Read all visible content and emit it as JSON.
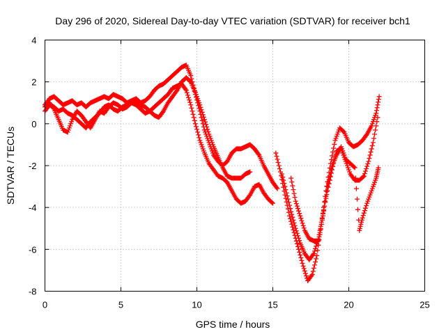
{
  "chart_data": {
    "type": "scatter",
    "title": "Day 296 of 2020, Sidereal Day-to-day VTEC variation (SDTVAR) for receiver bch1",
    "xlabel": "GPS time / hours",
    "ylabel": "SDTVAR / TECUs",
    "xlim": [
      0,
      25
    ],
    "ylim": [
      -8,
      4
    ],
    "xticks": [
      "0",
      "5",
      "10",
      "15",
      "20",
      "25"
    ],
    "yticks": [
      "-8",
      "-6",
      "-4",
      "-2",
      "0",
      "2",
      "4"
    ],
    "grid": true,
    "marker": "plus",
    "color": "#ff0000",
    "series": [
      {
        "x": [
          0,
          0.3,
          0.6,
          0.9,
          1.2,
          1.5,
          1.8,
          2.1,
          2.4,
          2.7,
          3.0,
          3.3,
          3.6,
          3.9,
          4.2,
          4.5,
          4.8,
          5.1,
          5.4,
          5.7,
          6.0,
          6.3,
          6.6,
          6.9,
          7.2,
          7.5,
          7.8,
          8.1,
          8.4,
          8.7,
          9.0,
          9.3,
          9.6,
          9.9,
          10.2,
          10.5,
          10.8,
          11.1,
          11.4,
          11.7,
          12.0,
          12.3,
          12.6,
          12.9,
          13.2,
          13.5,
          13.8,
          14.1,
          14.4,
          14.7,
          15.0,
          15.3
        ],
        "y": [
          0.9,
          1.2,
          1.3,
          1.1,
          0.9,
          1.0,
          1.1,
          0.9,
          1.0,
          0.8,
          1.0,
          1.1,
          1.2,
          1.3,
          1.2,
          1.4,
          1.3,
          1.2,
          1.0,
          1.1,
          1.2,
          1.0,
          1.1,
          1.3,
          1.6,
          1.8,
          1.9,
          2.1,
          2.3,
          2.5,
          2.7,
          2.8,
          2.3,
          1.4,
          0.6,
          -0.3,
          -0.9,
          -1.5,
          -1.8,
          -2.0,
          -1.8,
          -1.4,
          -1.2,
          -1.2,
          -1.1,
          -1.0,
          -1.2,
          -1.5,
          -2.0,
          -2.4,
          -2.8,
          -3.1
        ]
      },
      {
        "x": [
          0,
          0.3,
          0.6,
          0.9,
          1.2,
          1.5,
          1.8,
          2.1,
          2.4,
          2.7,
          3.0,
          3.3,
          3.6,
          3.9,
          4.2,
          4.5,
          4.8,
          5.1,
          5.4,
          5.7,
          6.0,
          6.3,
          6.6,
          6.9,
          7.2,
          7.5,
          7.8,
          8.1,
          8.4,
          8.7,
          9.0,
          9.3,
          9.6,
          9.9,
          10.2,
          10.5,
          10.8,
          11.1,
          11.4,
          11.7,
          12.0,
          12.3,
          12.6,
          12.9,
          13.2,
          13.5,
          13.8,
          14.1,
          14.4,
          14.7,
          15.0
        ],
        "y": [
          0.6,
          0.9,
          0.8,
          0.6,
          0.7,
          0.5,
          0.4,
          0.2,
          0.0,
          -0.2,
          0.1,
          0.3,
          0.5,
          0.8,
          0.9,
          0.7,
          0.6,
          0.8,
          0.9,
          1.0,
          0.9,
          0.7,
          0.5,
          0.6,
          0.8,
          1.0,
          1.2,
          1.4,
          1.7,
          1.8,
          1.9,
          1.6,
          0.9,
          0.0,
          -0.8,
          -1.4,
          -1.9,
          -2.2,
          -2.5,
          -2.6,
          -2.8,
          -3.2,
          -3.6,
          -3.8,
          -3.7,
          -3.4,
          -3.0,
          -2.9,
          -3.3,
          -3.6,
          -3.8
        ]
      },
      {
        "x": [
          0,
          0.3,
          0.6,
          0.9,
          1.2,
          1.5,
          1.8,
          2.1,
          2.4,
          2.7,
          3.0,
          3.3,
          3.6,
          3.9,
          4.2,
          4.5,
          4.8,
          5.1,
          5.4,
          5.7,
          6.0,
          6.3,
          6.6,
          6.9,
          7.2,
          7.5,
          7.8,
          8.1,
          8.4,
          8.7,
          9.0,
          9.3,
          9.6,
          9.9,
          10.2,
          10.5,
          10.8,
          11.1,
          11.4,
          11.7,
          12.0,
          12.3,
          12.6,
          12.9,
          13.2,
          13.5
        ],
        "y": [
          0.8,
          1.0,
          0.7,
          0.2,
          -0.3,
          -0.4,
          0.2,
          0.6,
          0.4,
          0.1,
          -0.2,
          0.2,
          0.6,
          0.5,
          0.8,
          1.0,
          0.9,
          0.7,
          0.8,
          1.0,
          1.1,
          0.9,
          0.8,
          0.6,
          0.4,
          0.3,
          0.6,
          1.0,
          1.3,
          1.6,
          2.0,
          2.2,
          2.0,
          1.5,
          0.9,
          0.2,
          -0.5,
          -1.1,
          -1.6,
          -2.1,
          -2.5,
          -2.6,
          -2.6,
          -2.6,
          -2.4,
          -2.3
        ]
      },
      {
        "x": [
          15.2,
          15.5,
          15.8,
          16.1,
          16.4,
          16.7,
          17.0,
          17.3,
          17.6,
          17.9,
          18.2,
          18.5,
          18.8,
          19.1,
          19.4,
          19.7,
          20.0,
          20.3,
          20.6,
          20.9,
          21.2,
          21.5,
          21.8,
          22.0
        ],
        "y": [
          -1.4,
          -2.3,
          -3.4,
          -4.4,
          -5.2,
          -6.0,
          -6.8,
          -7.5,
          -7.2,
          -6.3,
          -4.8,
          -3.2,
          -1.9,
          -0.8,
          -0.2,
          -0.4,
          -0.9,
          -1.1,
          -1.0,
          -0.8,
          -0.5,
          -0.1,
          0.5,
          1.3
        ]
      },
      {
        "x": [
          15.6,
          15.9,
          16.2,
          16.5,
          16.8,
          17.1,
          17.4,
          17.7,
          18.0,
          18.3,
          18.6,
          18.9,
          19.2,
          19.5,
          19.8,
          20.1,
          20.4,
          20.7,
          21.0,
          21.3,
          21.6,
          21.9
        ],
        "y": [
          -2.4,
          -3.3,
          -4.2,
          -5.0,
          -5.7,
          -6.2,
          -6.5,
          -6.2,
          -5.5,
          -4.3,
          -3.2,
          -2.2,
          -1.3,
          -1.2,
          -1.8,
          -2.4,
          -2.7,
          -2.7,
          -2.5,
          -1.8,
          -0.9,
          0.3
        ]
      },
      {
        "x": [
          16.2,
          16.5,
          16.8,
          17.1,
          17.4,
          17.7,
          18.0,
          18.3,
          18.6,
          18.9,
          19.2,
          19.5,
          19.8,
          20.1,
          20.4,
          20.7,
          20.9,
          21.2,
          21.5,
          21.8,
          21.95
        ],
        "y": [
          -2.6,
          -3.7,
          -4.4,
          -5.1,
          -5.5,
          -5.6,
          -5.6,
          -4.4,
          -3.0,
          -2.0,
          -1.5,
          -1.1,
          -1.7,
          -1.9,
          -2.1,
          -5.1,
          -4.5,
          -3.8,
          -3.2,
          -2.6,
          -2.1
        ]
      }
    ]
  }
}
